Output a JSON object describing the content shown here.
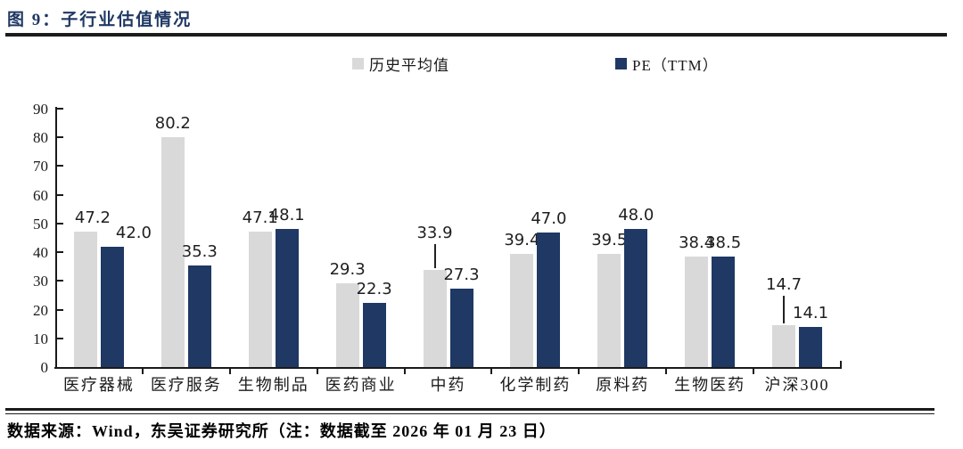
{
  "figure": {
    "title": "图 9：子行业估值情况",
    "source_note": "数据来源：Wind，东吴证券研究所（注：数据截至 2026 年 01 月 23 日）"
  },
  "colors": {
    "title_navy": "#1f3864",
    "series_gray": "#d9d9d9",
    "series_navy": "#1f3864",
    "axis": "#1a1a1a"
  },
  "chart_data": {
    "type": "bar",
    "title": "子行业估值情况",
    "categories": [
      "医疗器械",
      "医疗服务",
      "生物制品",
      "医药商业",
      "中药",
      "化学制药",
      "原料药",
      "生物医药",
      "沪深300"
    ],
    "series": [
      {
        "name": "历史平均值",
        "color": "#d9d9d9",
        "values": [
          47.2,
          80.2,
          47.1,
          29.3,
          33.9,
          39.4,
          39.5,
          38.4,
          14.7
        ]
      },
      {
        "name": "PE（TTM）",
        "color": "#1f3864",
        "values": [
          42.0,
          35.3,
          48.1,
          22.3,
          27.3,
          47.0,
          48.0,
          38.5,
          14.1
        ]
      }
    ],
    "ylim": [
      0,
      90
    ],
    "ytick_step": 10,
    "grid": false,
    "legend_position": "top",
    "data_labels": true,
    "data_label_format": "0.1f"
  }
}
